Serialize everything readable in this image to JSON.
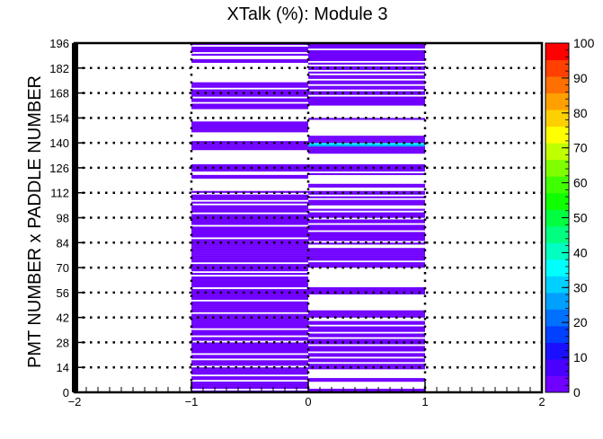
{
  "chart_data": {
    "type": "heatmap",
    "title": "XTalk (%): Module 3",
    "ylabel": "PMT NUMBER x PADDLE NUMBER",
    "xlabel": "",
    "xlim": [
      -2,
      2
    ],
    "ylim": [
      0,
      196
    ],
    "x_ticks": [
      -2,
      -1,
      0,
      1,
      2
    ],
    "y_ticks": [
      0,
      14,
      28,
      42,
      56,
      70,
      84,
      98,
      112,
      126,
      140,
      154,
      168,
      182,
      196
    ],
    "z_range": [
      0,
      100
    ],
    "z_ticks": [
      0,
      10,
      20,
      30,
      40,
      50,
      60,
      70,
      80,
      90,
      100
    ],
    "grid": true,
    "colormap": [
      "#7000ff",
      "#4a00ff",
      "#1a10ff",
      "#0040ff",
      "#0070ff",
      "#00a0ff",
      "#00d0ff",
      "#00ffff",
      "#00ffc0",
      "#00ff80",
      "#00ff40",
      "#10ff00",
      "#40ff00",
      "#80ff00",
      "#c0ff00",
      "#ffff00",
      "#ffd000",
      "#ffa000",
      "#ff7000",
      "#ff4000",
      "#ff0000"
    ],
    "columns": [
      {
        "x_range": [
          -1,
          0
        ],
        "empty_rows": [
          1,
          6,
          9,
          14,
          18,
          21,
          28,
          31,
          35,
          44,
          51,
          58,
          65,
          67,
          72,
          86,
          93,
          100,
          105,
          107,
          111,
          113,
          114,
          115,
          116,
          117,
          118,
          119,
          122,
          123,
          128,
          129,
          130,
          131,
          132,
          133,
          134,
          135,
          141,
          142,
          143,
          144,
          145,
          152,
          153,
          154,
          155,
          156,
          157,
          158,
          162,
          165,
          170,
          174,
          175,
          176,
          177,
          178,
          179,
          180,
          181,
          182,
          183,
          184,
          187,
          188,
          190,
          194
        ],
        "bright_rows": []
      },
      {
        "x_range": [
          0,
          1
        ],
        "empty_rows": [
          2,
          3,
          4,
          5,
          8,
          9,
          10,
          11,
          12,
          16,
          19,
          22,
          26,
          30,
          33,
          37,
          40,
          41,
          46,
          47,
          48,
          49,
          50,
          51,
          52,
          53,
          54,
          59,
          60,
          61,
          62,
          63,
          64,
          65,
          66,
          67,
          68,
          69,
          73,
          81,
          82,
          84,
          90,
          94,
          97,
          101,
          103,
          104,
          108,
          110,
          113,
          114,
          117,
          118,
          119,
          120,
          121,
          123,
          128,
          129,
          130,
          131,
          132,
          133,
          144,
          145,
          146,
          147,
          148,
          149,
          150,
          151,
          152,
          154,
          155,
          156,
          157,
          158,
          159,
          160,
          166,
          169,
          172,
          175,
          178,
          180,
          183,
          185,
          192
        ],
        "bright_rows": [
          {
            "row": 138,
            "value": 28
          },
          {
            "row": 139,
            "value": 35
          }
        ]
      }
    ]
  }
}
